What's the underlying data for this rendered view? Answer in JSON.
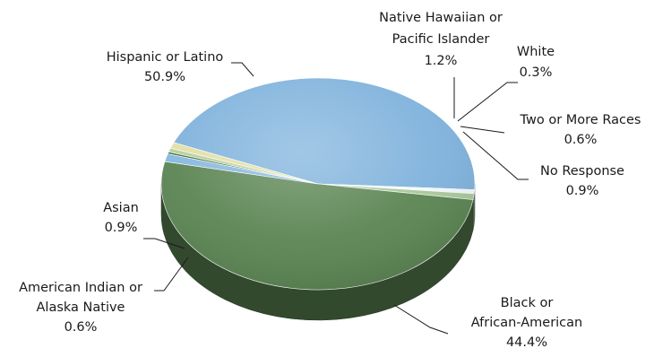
{
  "chart_data": {
    "type": "pie",
    "title": "",
    "slices": [
      {
        "label_lines": [
          "Black or",
          "African-American"
        ],
        "value": 44.4,
        "value_text": "44.4%",
        "color": "#7fb2dc"
      },
      {
        "label_lines": [
          "American Indian or",
          "Alaska Native"
        ],
        "value": 0.6,
        "value_text": "0.6%",
        "color": "#f2f7fb"
      },
      {
        "label_lines": [
          "Asian"
        ],
        "value": 0.9,
        "value_text": "0.9%",
        "color": "#a9c89a"
      },
      {
        "label_lines": [
          "Hispanic or Latino"
        ],
        "value": 50.9,
        "value_text": "50.9%",
        "color": "#5a8452"
      },
      {
        "label_lines": [
          "Native Hawaiian or",
          "Pacific Islander"
        ],
        "value": 1.2,
        "value_text": "1.2%",
        "color": "#86b8df"
      },
      {
        "label_lines": [
          "White"
        ],
        "value": 0.3,
        "value_text": "0.3%",
        "color": "#3c6a39"
      },
      {
        "label_lines": [
          "Two or More Races"
        ],
        "value": 0.6,
        "value_text": "0.6%",
        "color": "#b7cf9e"
      },
      {
        "label_lines": [
          "No Response"
        ],
        "value": 0.9,
        "value_text": "0.9%",
        "color": "#e2dfa6"
      }
    ],
    "legend": "none",
    "labels": "outside-with-leader-lines",
    "style": "3d-tilted"
  }
}
